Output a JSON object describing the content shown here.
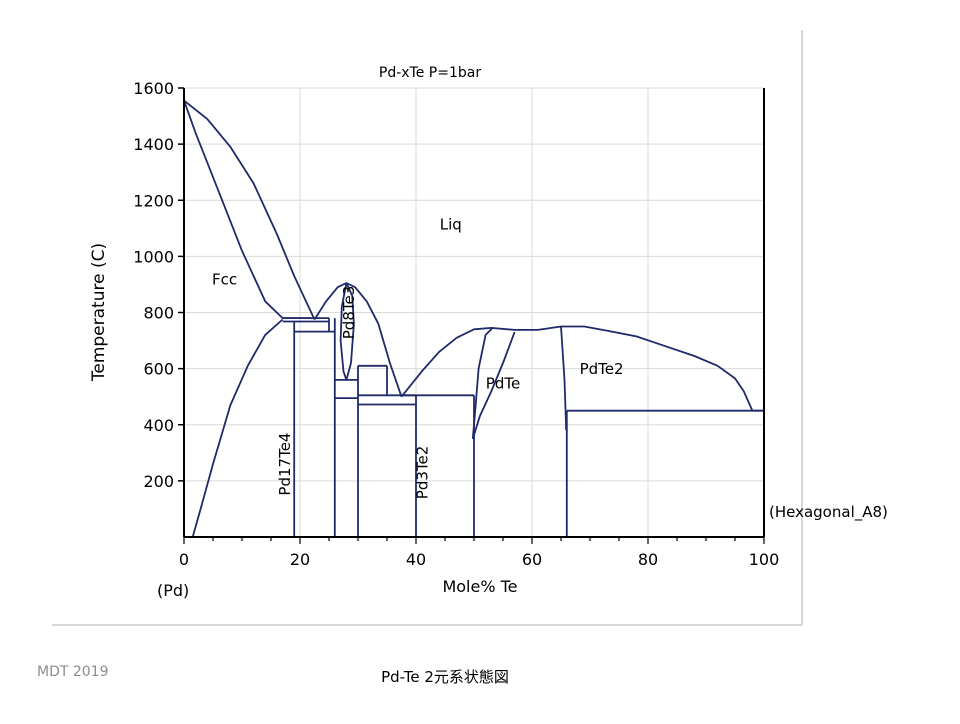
{
  "colors": {
    "curve": "#1f2a6b",
    "grid": "#d9d9d9",
    "axis": "#000000",
    "footer": "#8c8c8c"
  },
  "chart_data": {
    "type": "line",
    "title": "Pd-xTe P=1bar",
    "xlabel": "Mole% Te",
    "ylabel": "Temperature (C)",
    "xlim": [
      0,
      100
    ],
    "ylim": [
      0,
      1600
    ],
    "xticks": [
      0,
      20,
      40,
      60,
      80,
      100
    ],
    "yticks": [
      200,
      400,
      600,
      800,
      1000,
      1200,
      1400,
      1600
    ],
    "grid": true,
    "end_labels": {
      "left": "(Pd)",
      "right": "(Hexagonal_A8)"
    },
    "phase_labels": [
      {
        "text": "Liq",
        "x": 46,
        "y": 1095
      },
      {
        "text": "Fcc",
        "x": 7,
        "y": 900
      },
      {
        "text": "PdTe",
        "x": 55,
        "y": 530
      },
      {
        "text": "PdTe2",
        "x": 72,
        "y": 580
      },
      {
        "text": "Pd17Te4",
        "x": 18.3,
        "y": 260,
        "rotate": true
      },
      {
        "text": "Pd8Te3",
        "x": 29.3,
        "y": 800,
        "rotate": true
      },
      {
        "text": "Pd3Te2",
        "x": 42,
        "y": 230,
        "rotate": true
      }
    ],
    "series": [
      {
        "points": [
          [
            0,
            1555
          ],
          [
            4,
            1490
          ],
          [
            8,
            1390
          ],
          [
            12,
            1260
          ],
          [
            16,
            1080
          ],
          [
            19,
            930
          ],
          [
            22.5,
            775
          ]
        ]
      },
      {
        "points": [
          [
            0,
            1555
          ],
          [
            2,
            1440
          ],
          [
            6,
            1230
          ],
          [
            10,
            1020
          ],
          [
            14,
            840
          ],
          [
            17,
            780
          ],
          [
            19,
            780
          ],
          [
            22,
            780
          ]
        ]
      },
      {
        "points": [
          [
            1.5,
            0
          ],
          [
            3,
            110
          ],
          [
            5,
            260
          ],
          [
            8,
            470
          ],
          [
            11,
            610
          ],
          [
            14,
            720
          ],
          [
            17,
            775
          ]
        ]
      },
      {
        "points": [
          [
            22.5,
            775
          ],
          [
            24.5,
            840
          ],
          [
            26.5,
            890
          ],
          [
            28,
            905
          ],
          [
            29.5,
            890
          ],
          [
            31.5,
            840
          ],
          [
            33.5,
            760
          ],
          [
            35.5,
            620
          ],
          [
            37.5,
            500
          ]
        ]
      },
      {
        "points": [
          [
            37.5,
            500
          ],
          [
            41,
            590
          ],
          [
            44,
            660
          ],
          [
            47,
            710
          ],
          [
            50,
            740
          ],
          [
            53,
            745
          ],
          [
            57,
            738
          ],
          [
            61,
            738
          ],
          [
            65,
            750
          ],
          [
            69,
            750
          ],
          [
            73,
            735
          ],
          [
            78,
            715
          ],
          [
            83,
            680
          ],
          [
            88,
            645
          ],
          [
            92,
            610
          ],
          [
            95,
            565
          ],
          [
            96.5,
            520
          ],
          [
            98,
            450
          ]
        ]
      },
      {
        "points": [
          [
            28,
            905
          ],
          [
            27.2,
            820
          ],
          [
            27,
            700
          ],
          [
            27.5,
            590
          ],
          [
            28,
            560
          ],
          [
            28.8,
            620
          ],
          [
            29.3,
            760
          ],
          [
            29,
            860
          ],
          [
            28,
            905
          ]
        ]
      },
      {
        "points": [
          [
            49.8,
            350
          ],
          [
            50.2,
            450
          ],
          [
            50.8,
            600
          ],
          [
            52,
            720
          ],
          [
            53.2,
            745
          ]
        ]
      },
      {
        "points": [
          [
            49.8,
            350
          ],
          [
            51,
            430
          ],
          [
            53,
            520
          ],
          [
            55,
            620
          ],
          [
            57,
            730
          ]
        ]
      },
      {
        "points": [
          [
            65,
            750
          ],
          [
            65.6,
            560
          ],
          [
            65.9,
            380
          ]
        ]
      },
      {
        "points": [
          [
            17,
            780
          ],
          [
            25,
            780
          ]
        ]
      },
      {
        "points": [
          [
            17,
            768
          ],
          [
            25,
            768
          ]
        ]
      },
      {
        "points": [
          [
            19,
            732
          ],
          [
            26,
            732
          ]
        ]
      },
      {
        "points": [
          [
            19,
            768
          ],
          [
            19,
            0
          ]
        ]
      },
      {
        "points": [
          [
            26,
            780
          ],
          [
            26,
            0
          ]
        ]
      },
      {
        "points": [
          [
            25,
            780
          ],
          [
            25,
            732
          ]
        ]
      },
      {
        "points": [
          [
            26,
            560
          ],
          [
            30,
            560
          ]
        ]
      },
      {
        "points": [
          [
            26,
            495
          ],
          [
            30,
            495
          ]
        ]
      },
      {
        "points": [
          [
            30,
            610
          ],
          [
            30,
            0
          ]
        ]
      },
      {
        "points": [
          [
            30,
            610
          ],
          [
            35,
            610
          ]
        ]
      },
      {
        "points": [
          [
            30,
            505
          ],
          [
            40,
            505
          ]
        ]
      },
      {
        "points": [
          [
            30,
            472
          ],
          [
            40,
            472
          ]
        ]
      },
      {
        "points": [
          [
            35,
            610
          ],
          [
            35,
            505
          ]
        ]
      },
      {
        "points": [
          [
            40,
            505
          ],
          [
            40,
            0
          ]
        ]
      },
      {
        "points": [
          [
            37.5,
            505
          ],
          [
            50,
            505
          ]
        ]
      },
      {
        "points": [
          [
            50,
            505
          ],
          [
            50,
            0
          ]
        ]
      },
      {
        "points": [
          [
            66,
            450
          ],
          [
            66,
            0
          ]
        ]
      },
      {
        "points": [
          [
            66,
            450
          ],
          [
            100,
            450
          ]
        ]
      },
      {
        "points": [
          [
            98,
            450
          ],
          [
            100,
            450
          ]
        ]
      }
    ]
  },
  "footer": {
    "left": "MDT   2019",
    "caption": "Pd-Te  2元系状態図"
  }
}
